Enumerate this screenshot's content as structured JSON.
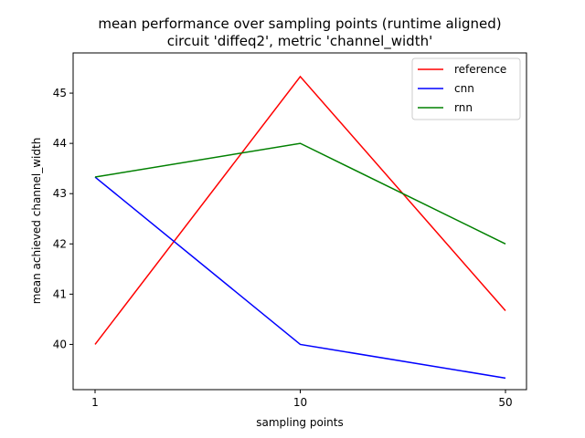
{
  "chart_data": {
    "type": "line",
    "title": "mean performance over sampling points (runtime aligned)",
    "subtitle": "circuit 'diffeq2', metric 'channel_width'",
    "xlabel": "sampling points",
    "ylabel": "mean achieved channel_width",
    "categories": [
      "1",
      "10",
      "50"
    ],
    "ylim": [
      39.1,
      45.8
    ],
    "yticks": [
      40,
      41,
      42,
      43,
      44,
      45
    ],
    "grid": false,
    "legend_position": "top-right",
    "series": [
      {
        "name": "reference",
        "color": "#ff0000",
        "values": [
          40.0,
          45.33,
          40.67
        ]
      },
      {
        "name": "cnn",
        "color": "#0000ff",
        "values": [
          43.33,
          40.0,
          39.33
        ]
      },
      {
        "name": "rnn",
        "color": "#008000",
        "values": [
          43.33,
          44.0,
          42.0
        ]
      }
    ]
  }
}
